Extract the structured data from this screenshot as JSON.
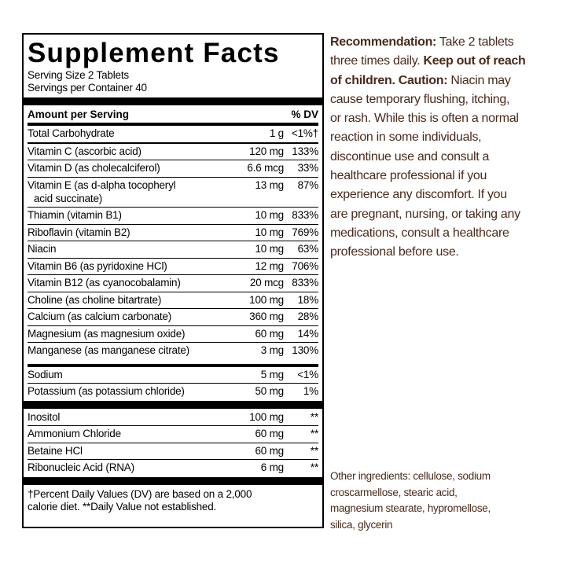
{
  "panel": {
    "title": "Supplement Facts",
    "serving_size": "Serving Size 2 Tablets",
    "servings_per_container": "Servings per Container 40",
    "header": {
      "amount": "Amount per Serving",
      "dv": "% DV"
    },
    "groups": [
      [
        {
          "name": "Total Carbohydrate",
          "amount": "1 g",
          "dv": "<1%†"
        }
      ],
      [
        {
          "name": "Vitamin C (ascorbic acid)",
          "amount": "120 mg",
          "dv": "133%"
        },
        {
          "name": "Vitamin D (as cholecalciferol)",
          "amount": "6.6 mcg",
          "dv": "33%"
        },
        {
          "name": "Vitamin E (as d-alpha tocopheryl",
          "name_line2": "acid succinate)",
          "amount": "13 mg",
          "dv": "87%"
        },
        {
          "name": "Thiamin (vitamin B1)",
          "amount": "10 mg",
          "dv": "833%"
        },
        {
          "name": "Riboflavin (vitamin B2)",
          "amount": "10 mg",
          "dv": "769%"
        },
        {
          "name": "Niacin",
          "amount": "10 mg",
          "dv": "63%"
        },
        {
          "name": "Vitamin B6 (as pyridoxine HCl)",
          "amount": "12 mg",
          "dv": "706%"
        },
        {
          "name": "Vitamin B12 (as cyanocobalamin)",
          "amount": "20 mcg",
          "dv": "833%"
        },
        {
          "name": "Choline (as choline bitartrate)",
          "amount": "100 mg",
          "dv": "18%"
        },
        {
          "name": "Calcium (as calcium carbonate)",
          "amount": "360 mg",
          "dv": "28%"
        },
        {
          "name": "Magnesium (as magnesium oxide)",
          "amount": "60 mg",
          "dv": "14%"
        },
        {
          "name": "Manganese (as manganese citrate)",
          "amount": "3 mg",
          "dv": "130%"
        }
      ],
      [
        {
          "name": "Sodium",
          "amount": "5 mg",
          "dv": "<1%"
        },
        {
          "name": "Potassium (as potassium chloride)",
          "amount": "50 mg",
          "dv": "1%"
        }
      ],
      [
        {
          "name": "Inositol",
          "amount": "100 mg",
          "dv": "**"
        },
        {
          "name": "Ammonium Chloride",
          "amount": "60 mg",
          "dv": "**"
        },
        {
          "name": "Betaine HCl",
          "amount": "60 mg",
          "dv": "**"
        },
        {
          "name": "Ribonucleic Acid (RNA)",
          "amount": "6 mg",
          "dv": "**"
        }
      ]
    ],
    "footnote": [
      "†Percent Daily Values (DV) are based on a 2,000",
      "calorie diet. **Daily Value not established."
    ]
  },
  "recommendation": [
    [
      {
        "text": "Recommendation:",
        "bold": true
      },
      {
        "text": " Take 2 tablets",
        "bold": false
      }
    ],
    [
      {
        "text": "three times daily. ",
        "bold": false
      },
      {
        "text": "Keep out of reach",
        "bold": true
      }
    ],
    [
      {
        "text": "of children. Caution:",
        "bold": true
      },
      {
        "text": " Niacin may",
        "bold": false
      }
    ],
    [
      {
        "text": "cause temporary flushing, itching,",
        "bold": false
      }
    ],
    [
      {
        "text": "or rash. While this is often a normal",
        "bold": false
      }
    ],
    [
      {
        "text": "reaction in some individuals,",
        "bold": false
      }
    ],
    [
      {
        "text": "discontinue use and consult a",
        "bold": false
      }
    ],
    [
      {
        "text": "healthcare professional if you",
        "bold": false
      }
    ],
    [
      {
        "text": "experience any discomfort. If you",
        "bold": false
      }
    ],
    [
      {
        "text": "are pregnant, nursing, or taking any",
        "bold": false
      }
    ],
    [
      {
        "text": "medications, consult a healthcare",
        "bold": false
      }
    ],
    [
      {
        "text": "professional before use.",
        "bold": false
      }
    ]
  ],
  "other_ingredients": [
    "Other ingredients: cellulose, sodium",
    "croscarmellose, stearic acid,",
    "magnesium stearate, hypromellose,",
    "silica, glycerin"
  ]
}
